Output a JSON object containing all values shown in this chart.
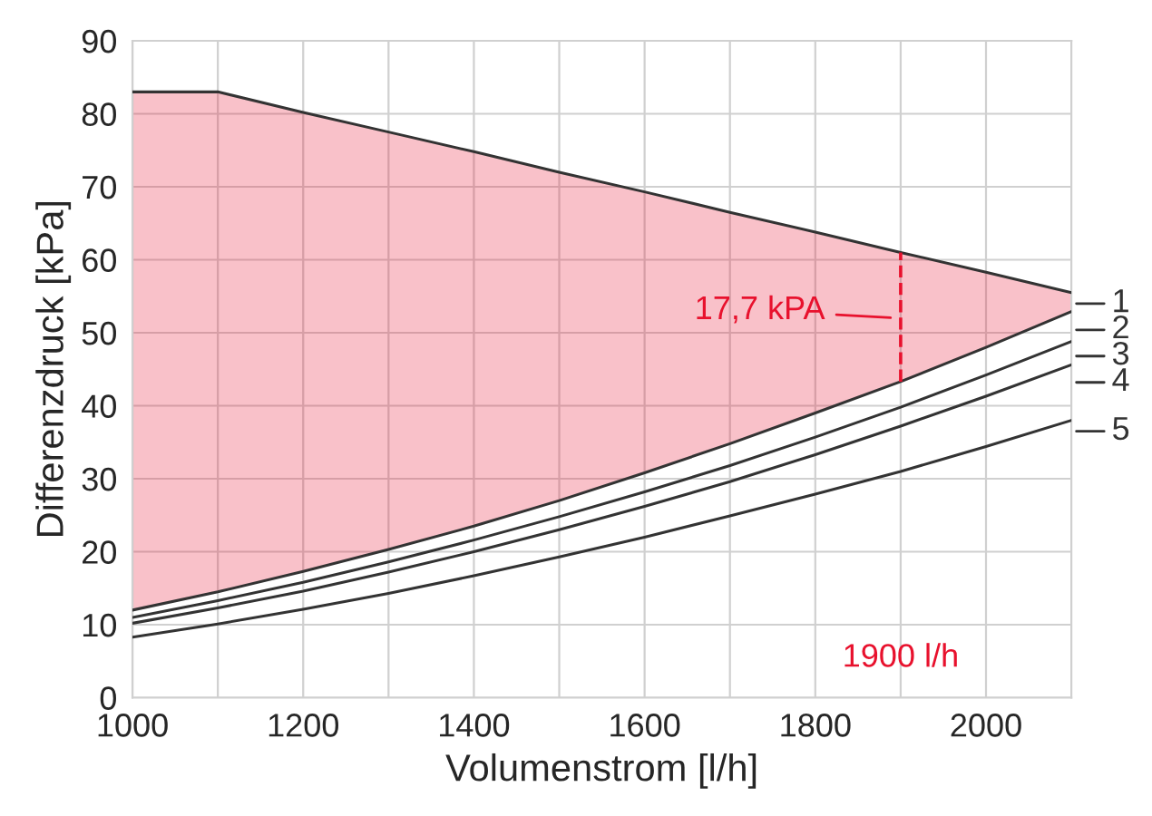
{
  "chart_data": {
    "type": "line",
    "xlabel": "Volumenstrom [l/h]",
    "ylabel": "Differenzdruck [kPa]",
    "xlim": [
      1000,
      2100
    ],
    "ylim": [
      0,
      90
    ],
    "xticks": [
      1000,
      {
        "value": 1100,
        "label": null
      },
      1200,
      {
        "value": 1300,
        "label": null
      },
      1400,
      {
        "value": 1500,
        "label": null
      },
      1600,
      {
        "value": 1700,
        "label": null
      },
      1800,
      {
        "value": 1900,
        "label": null
      },
      2000,
      {
        "value": 2100,
        "label": null
      }
    ],
    "yticks": [
      0,
      10,
      20,
      30,
      40,
      50,
      60,
      70,
      80,
      90
    ],
    "grid": true,
    "legend": "right",
    "series": [
      {
        "name": "1",
        "color": "#333333",
        "x": [
          1000,
          1100,
          1200,
          1300,
          1400,
          1500,
          1600,
          1700,
          1800,
          1900,
          2000,
          2100
        ],
        "values": [
          83,
          83,
          80.2,
          77.5,
          74.8,
          72,
          69.3,
          66.5,
          63.8,
          61,
          58.3,
          55.5
        ],
        "lower": [
          12,
          14.5,
          17.3,
          20.3,
          23.5,
          27,
          30.8,
          34.8,
          39,
          43.3,
          48,
          52.9
        ],
        "upper": [
          83,
          83,
          80.2,
          77.5,
          74.8,
          72,
          69.3,
          66.5,
          63.8,
          61,
          58.3,
          55.5
        ]
      },
      {
        "name": "2",
        "color": "#333333",
        "x": [
          1000,
          1100,
          1200,
          1300,
          1400,
          1500,
          1600,
          1700,
          1800,
          1900,
          2000,
          2100
        ],
        "values": [
          12,
          14.5,
          17.3,
          20.3,
          23.5,
          27,
          30.8,
          34.8,
          39,
          43.3,
          48,
          52.9
        ]
      },
      {
        "name": "3",
        "color": "#333333",
        "x": [
          1000,
          1100,
          1200,
          1300,
          1400,
          1500,
          1600,
          1700,
          1800,
          1900,
          2000,
          2100
        ],
        "values": [
          11,
          13.3,
          15.8,
          18.6,
          21.6,
          24.8,
          28.2,
          31.8,
          35.7,
          39.8,
          44.2,
          48.8
        ]
      },
      {
        "name": "4",
        "color": "#333333",
        "x": [
          1000,
          1100,
          1200,
          1300,
          1400,
          1500,
          1600,
          1700,
          1800,
          1900,
          2000,
          2100
        ],
        "values": [
          10.2,
          12.3,
          14.6,
          17.2,
          20,
          23,
          26.2,
          29.6,
          33.3,
          37.2,
          41.3,
          45.6
        ]
      },
      {
        "name": "5",
        "color": "#333333",
        "x": [
          1000,
          1100,
          1200,
          1300,
          1400,
          1500,
          1600,
          1700,
          1800,
          1900,
          2000,
          2100
        ],
        "values": [
          8.3,
          10.1,
          12.1,
          14.3,
          16.7,
          19.3,
          22,
          24.9,
          27.9,
          31,
          34.4,
          38
        ]
      }
    ],
    "ref_lines": [
      {
        "axis": "x",
        "value": 1900,
        "label": "1900 l/h",
        "color": "#e8112d",
        "line_style": "dashed"
      }
    ],
    "annotations": [
      {
        "text": "17,7 kPA",
        "x": 1900,
        "y": 52
      }
    ]
  }
}
